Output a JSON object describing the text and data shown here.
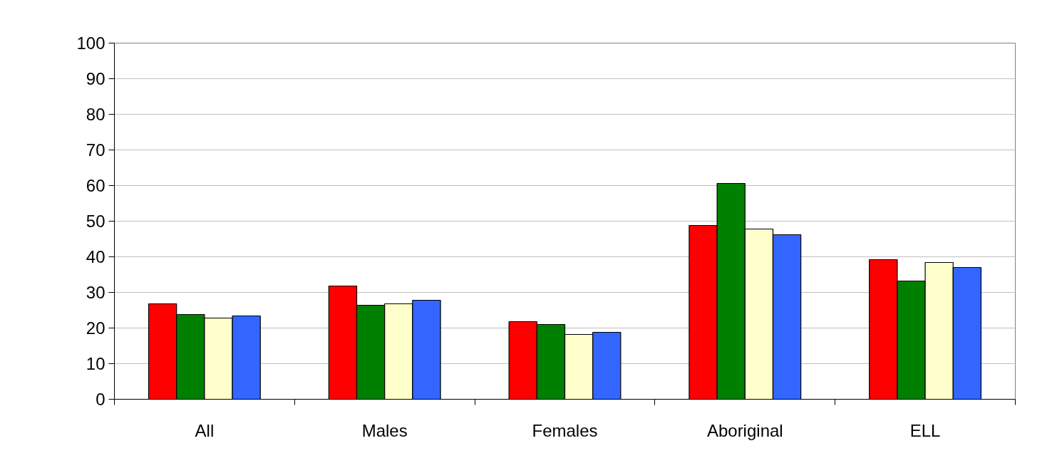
{
  "chart_data": {
    "type": "bar",
    "categories": [
      "All",
      "Males",
      "Females",
      "Aboriginal",
      "ELL"
    ],
    "series": [
      {
        "color": "#ff0000",
        "values": [
          26.8,
          31.8,
          21.8,
          48.8,
          39.2
        ]
      },
      {
        "color": "#008000",
        "values": [
          23.8,
          26.4,
          21.0,
          60.6,
          33.2
        ]
      },
      {
        "color": "#ffffcc",
        "values": [
          22.8,
          26.8,
          18.2,
          47.8,
          38.4
        ]
      },
      {
        "color": "#3366ff",
        "values": [
          23.4,
          27.8,
          18.8,
          46.2,
          37.0
        ]
      }
    ],
    "ylim": [
      0,
      100
    ],
    "yticks": [
      0,
      10,
      20,
      30,
      40,
      50,
      60,
      70,
      80,
      90,
      100
    ],
    "grid": "y"
  }
}
